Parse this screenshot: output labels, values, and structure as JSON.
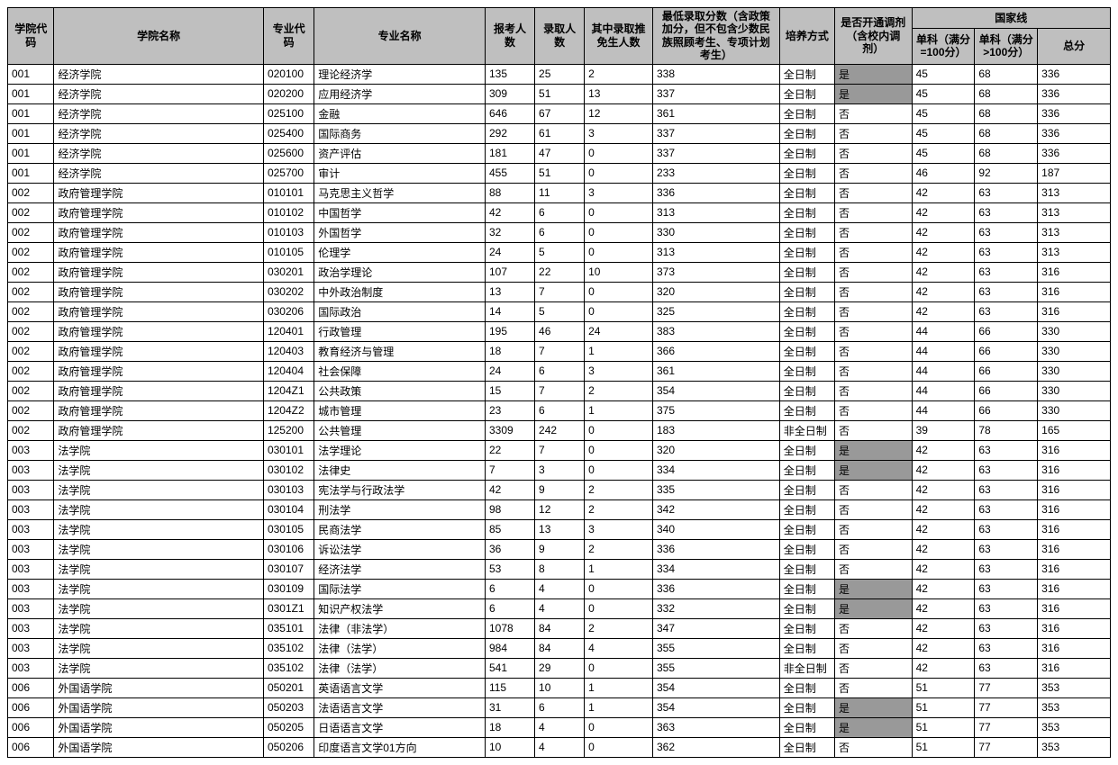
{
  "headers": {
    "col0": "学院代码",
    "col1": "学院名称",
    "col2": "专业代码",
    "col3": "专业名称",
    "col4": "报考人数",
    "col5": "录取人数",
    "col6": "其中录取推免生人数",
    "col7": "最低录取分数（含政策加分，但不包含少数民族照顾考生、专项计划考生）",
    "col8": "培养方式",
    "col9": "是否开通调剂（含校内调剂）",
    "group_national": "国家线",
    "col10": "单科（满分=100分）",
    "col11": "单科（满分>100分）",
    "col12": "总分"
  },
  "rows": [
    [
      "001",
      "经济学院",
      "020100",
      "理论经济学",
      "135",
      "25",
      "2",
      "338",
      "全日制",
      "是",
      "45",
      "68",
      "336",
      true
    ],
    [
      "001",
      "经济学院",
      "020200",
      "应用经济学",
      "309",
      "51",
      "13",
      "337",
      "全日制",
      "是",
      "45",
      "68",
      "336",
      true
    ],
    [
      "001",
      "经济学院",
      "025100",
      "金融",
      "646",
      "67",
      "12",
      "361",
      "全日制",
      "否",
      "45",
      "68",
      "336",
      false
    ],
    [
      "001",
      "经济学院",
      "025400",
      "国际商务",
      "292",
      "61",
      "3",
      "337",
      "全日制",
      "否",
      "45",
      "68",
      "336",
      false
    ],
    [
      "001",
      "经济学院",
      "025600",
      "资产评估",
      "181",
      "47",
      "0",
      "337",
      "全日制",
      "否",
      "45",
      "68",
      "336",
      false
    ],
    [
      "001",
      "经济学院",
      "025700",
      "审计",
      "455",
      "51",
      "0",
      "233",
      "全日制",
      "否",
      "46",
      "92",
      "187",
      false
    ],
    [
      "002",
      "政府管理学院",
      "010101",
      "马克思主义哲学",
      "88",
      "11",
      "3",
      "336",
      "全日制",
      "否",
      "42",
      "63",
      "313",
      false
    ],
    [
      "002",
      "政府管理学院",
      "010102",
      "中国哲学",
      "42",
      "6",
      "0",
      "313",
      "全日制",
      "否",
      "42",
      "63",
      "313",
      false
    ],
    [
      "002",
      "政府管理学院",
      "010103",
      "外国哲学",
      "32",
      "6",
      "0",
      "330",
      "全日制",
      "否",
      "42",
      "63",
      "313",
      false
    ],
    [
      "002",
      "政府管理学院",
      "010105",
      "伦理学",
      "24",
      "5",
      "0",
      "313",
      "全日制",
      "否",
      "42",
      "63",
      "313",
      false
    ],
    [
      "002",
      "政府管理学院",
      "030201",
      "政治学理论",
      "107",
      "22",
      "10",
      "373",
      "全日制",
      "否",
      "42",
      "63",
      "316",
      false
    ],
    [
      "002",
      "政府管理学院",
      "030202",
      "中外政治制度",
      "13",
      "7",
      "0",
      "320",
      "全日制",
      "否",
      "42",
      "63",
      "316",
      false
    ],
    [
      "002",
      "政府管理学院",
      "030206",
      "国际政治",
      "14",
      "5",
      "0",
      "325",
      "全日制",
      "否",
      "42",
      "63",
      "316",
      false
    ],
    [
      "002",
      "政府管理学院",
      "120401",
      "行政管理",
      "195",
      "46",
      "24",
      "383",
      "全日制",
      "否",
      "44",
      "66",
      "330",
      false
    ],
    [
      "002",
      "政府管理学院",
      "120403",
      "教育经济与管理",
      "18",
      "7",
      "1",
      "366",
      "全日制",
      "否",
      "44",
      "66",
      "330",
      false
    ],
    [
      "002",
      "政府管理学院",
      "120404",
      "社会保障",
      "24",
      "6",
      "3",
      "361",
      "全日制",
      "否",
      "44",
      "66",
      "330",
      false
    ],
    [
      "002",
      "政府管理学院",
      "1204Z1",
      "公共政策",
      "15",
      "7",
      "2",
      "354",
      "全日制",
      "否",
      "44",
      "66",
      "330",
      false
    ],
    [
      "002",
      "政府管理学院",
      "1204Z2",
      "城市管理",
      "23",
      "6",
      "1",
      "375",
      "全日制",
      "否",
      "44",
      "66",
      "330",
      false
    ],
    [
      "002",
      "政府管理学院",
      "125200",
      "公共管理",
      "3309",
      "242",
      "0",
      "183",
      "非全日制",
      "否",
      "39",
      "78",
      "165",
      false
    ],
    [
      "003",
      "法学院",
      "030101",
      "法学理论",
      "22",
      "7",
      "0",
      "320",
      "全日制",
      "是",
      "42",
      "63",
      "316",
      true
    ],
    [
      "003",
      "法学院",
      "030102",
      "法律史",
      "7",
      "3",
      "0",
      "334",
      "全日制",
      "是",
      "42",
      "63",
      "316",
      true
    ],
    [
      "003",
      "法学院",
      "030103",
      "宪法学与行政法学",
      "42",
      "9",
      "2",
      "335",
      "全日制",
      "否",
      "42",
      "63",
      "316",
      false
    ],
    [
      "003",
      "法学院",
      "030104",
      "刑法学",
      "98",
      "12",
      "2",
      "342",
      "全日制",
      "否",
      "42",
      "63",
      "316",
      false
    ],
    [
      "003",
      "法学院",
      "030105",
      "民商法学",
      "85",
      "13",
      "3",
      "340",
      "全日制",
      "否",
      "42",
      "63",
      "316",
      false
    ],
    [
      "003",
      "法学院",
      "030106",
      "诉讼法学",
      "36",
      "9",
      "2",
      "336",
      "全日制",
      "否",
      "42",
      "63",
      "316",
      false
    ],
    [
      "003",
      "法学院",
      "030107",
      "经济法学",
      "53",
      "8",
      "1",
      "334",
      "全日制",
      "否",
      "42",
      "63",
      "316",
      false
    ],
    [
      "003",
      "法学院",
      "030109",
      "国际法学",
      "6",
      "4",
      "0",
      "336",
      "全日制",
      "是",
      "42",
      "63",
      "316",
      true
    ],
    [
      "003",
      "法学院",
      "0301Z1",
      "知识产权法学",
      "6",
      "4",
      "0",
      "332",
      "全日制",
      "是",
      "42",
      "63",
      "316",
      true
    ],
    [
      "003",
      "法学院",
      "035101",
      "法律（非法学）",
      "1078",
      "84",
      "2",
      "347",
      "全日制",
      "否",
      "42",
      "63",
      "316",
      false
    ],
    [
      "003",
      "法学院",
      "035102",
      "法律（法学）",
      "984",
      "84",
      "4",
      "355",
      "全日制",
      "否",
      "42",
      "63",
      "316",
      false
    ],
    [
      "003",
      "法学院",
      "035102",
      "法律（法学）",
      "541",
      "29",
      "0",
      "355",
      "非全日制",
      "否",
      "42",
      "63",
      "316",
      false
    ],
    [
      "006",
      "外国语学院",
      "050201",
      "英语语言文学",
      "115",
      "10",
      "1",
      "354",
      "全日制",
      "否",
      "51",
      "77",
      "353",
      false
    ],
    [
      "006",
      "外国语学院",
      "050203",
      "法语语言文学",
      "31",
      "6",
      "1",
      "354",
      "全日制",
      "是",
      "51",
      "77",
      "353",
      true
    ],
    [
      "006",
      "外国语学院",
      "050205",
      "日语语言文学",
      "18",
      "4",
      "0",
      "363",
      "全日制",
      "是",
      "51",
      "77",
      "353",
      true
    ],
    [
      "006",
      "外国语学院",
      "050206",
      "印度语言文学01方向",
      "10",
      "4",
      "0",
      "362",
      "全日制",
      "否",
      "51",
      "77",
      "353",
      false
    ]
  ]
}
